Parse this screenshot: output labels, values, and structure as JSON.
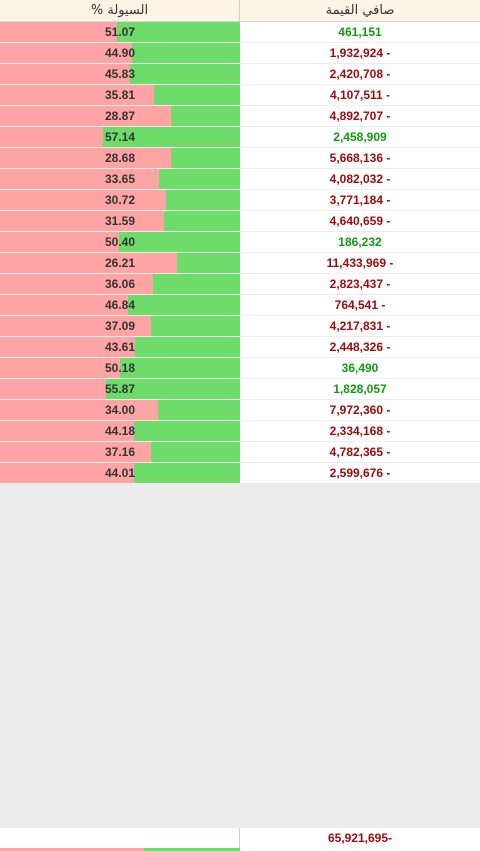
{
  "header": {
    "liquidity_label": "السيولة %",
    "net_value_label": "صافي القيمة"
  },
  "rows": [
    {
      "liquidity": "51.07",
      "net_value": "461,151",
      "sign": "pos"
    },
    {
      "liquidity": "44.90",
      "net_value": "1,932,924 -",
      "sign": "neg"
    },
    {
      "liquidity": "45.83",
      "net_value": "2,420,708 -",
      "sign": "neg"
    },
    {
      "liquidity": "35.81",
      "net_value": "4,107,511 -",
      "sign": "neg"
    },
    {
      "liquidity": "28.87",
      "net_value": "4,892,707 -",
      "sign": "neg"
    },
    {
      "liquidity": "57.14",
      "net_value": "2,458,909",
      "sign": "pos"
    },
    {
      "liquidity": "28.68",
      "net_value": "5,668,136 -",
      "sign": "neg"
    },
    {
      "liquidity": "33.65",
      "net_value": "4,082,032 -",
      "sign": "neg"
    },
    {
      "liquidity": "30.72",
      "net_value": "3,771,184 -",
      "sign": "neg"
    },
    {
      "liquidity": "31.59",
      "net_value": "4,640,659 -",
      "sign": "neg"
    },
    {
      "liquidity": "50.40",
      "net_value": "186,232",
      "sign": "pos"
    },
    {
      "liquidity": "26.21",
      "net_value": "11,433,969 -",
      "sign": "neg"
    },
    {
      "liquidity": "36.06",
      "net_value": "2,823,437 -",
      "sign": "neg"
    },
    {
      "liquidity": "46.84",
      "net_value": "764,541 -",
      "sign": "neg"
    },
    {
      "liquidity": "37.09",
      "net_value": "4,217,831 -",
      "sign": "neg"
    },
    {
      "liquidity": "43.61",
      "net_value": "2,448,326 -",
      "sign": "neg"
    },
    {
      "liquidity": "50.18",
      "net_value": "36,490",
      "sign": "pos"
    },
    {
      "liquidity": "55.87",
      "net_value": "1,828,057",
      "sign": "pos"
    },
    {
      "liquidity": "34.00",
      "net_value": "7,972,360 -",
      "sign": "neg"
    },
    {
      "liquidity": "44.18",
      "net_value": "2,334,168 -",
      "sign": "neg"
    },
    {
      "liquidity": "37.16",
      "net_value": "4,782,365 -",
      "sign": "neg"
    },
    {
      "liquidity": "44.01",
      "net_value": "2,599,676 -",
      "sign": "neg"
    }
  ],
  "total": {
    "net_value": "65,921,695-",
    "liquidity": 40.0
  },
  "colors": {
    "inflow": "#6ddc6a",
    "outflow": "#ffa4a4",
    "negative": "#9b0b0b",
    "positive": "#119a11"
  }
}
